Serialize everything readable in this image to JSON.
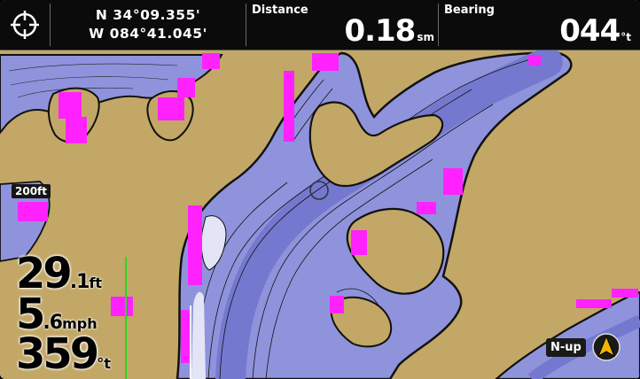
{
  "position": {
    "latitude": "N 34°09.355'",
    "longitude": "W 084°41.045'"
  },
  "distance": {
    "label": "Distance",
    "value": "0.18",
    "unit": "sm"
  },
  "bearing": {
    "label": "Bearing",
    "value": "044",
    "unit": "°t"
  },
  "map": {
    "depth_tag": "200ft",
    "orientation": "N-up",
    "colors": {
      "land": "#c2a766",
      "water": "#8f93dc",
      "shallow": "#e3e4f5",
      "deep": "#7479cf",
      "hazard": "#ff22ff",
      "contour": "#111111"
    }
  },
  "readouts": {
    "depth": {
      "whole": "29",
      "frac": ".1",
      "unit": "ft"
    },
    "speed": {
      "whole": "5",
      "frac": ".6",
      "unit": "mph"
    },
    "heading": {
      "whole": "359",
      "unit": "°t"
    }
  },
  "icons": {
    "cursor": "crosshair-icon",
    "compass": "north-arrow-icon"
  }
}
